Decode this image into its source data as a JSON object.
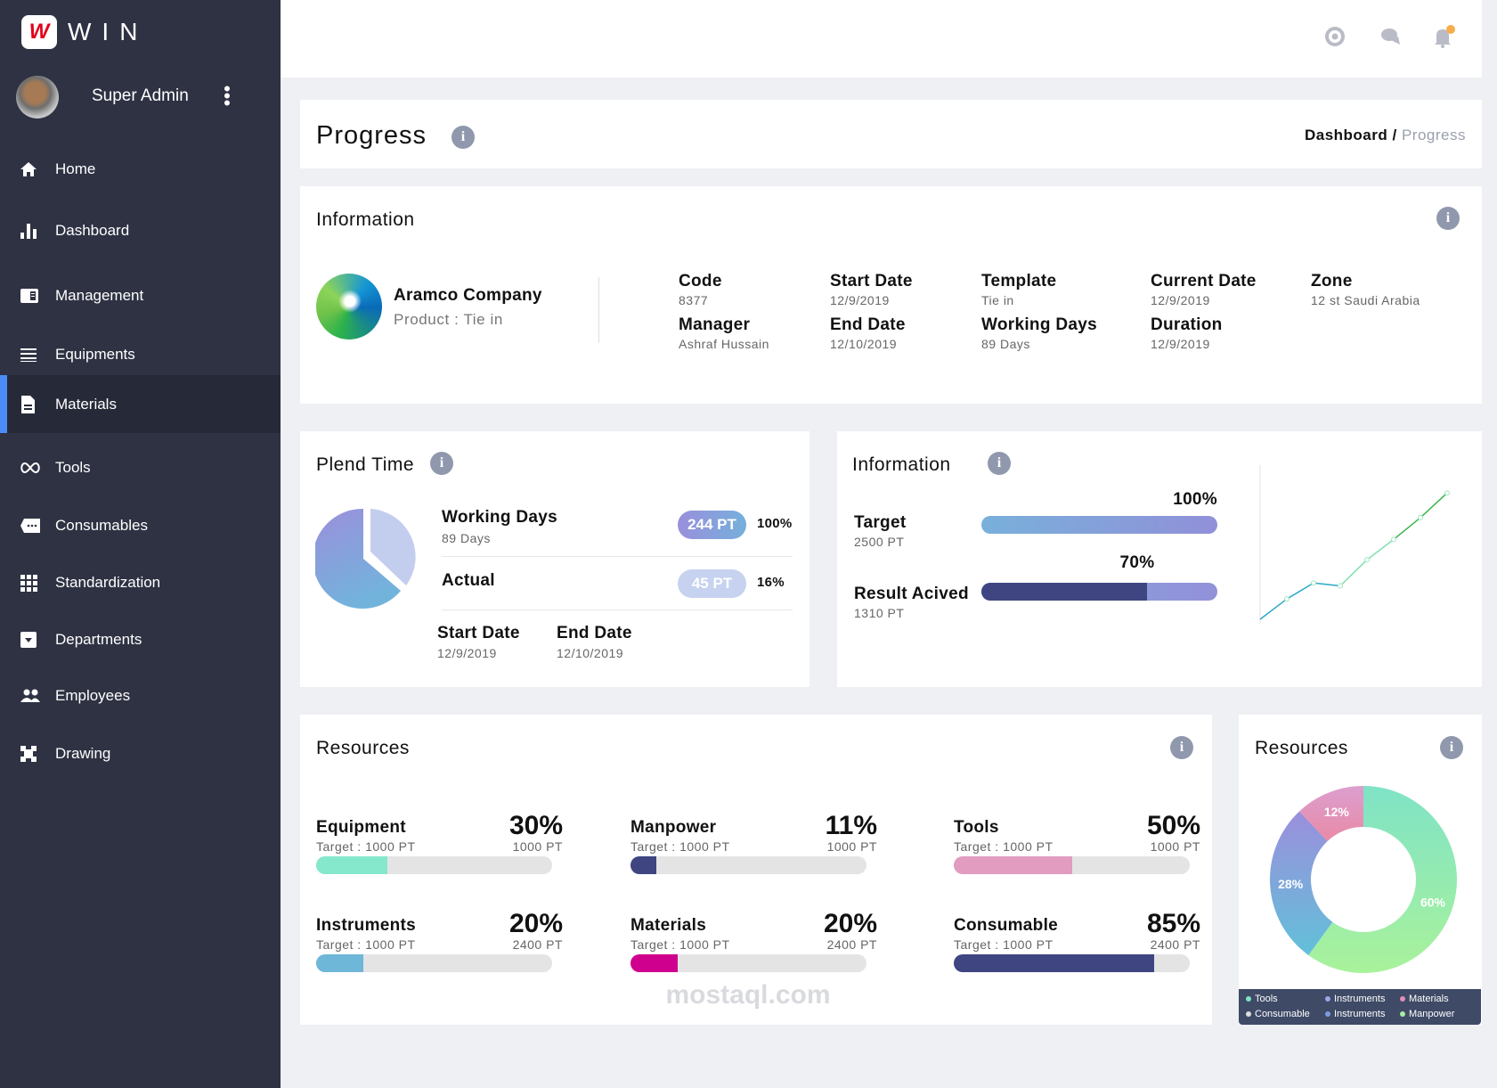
{
  "app": {
    "brand": "WIN",
    "logo_letter": "W",
    "user": "Super Admin"
  },
  "sidebar": {
    "items": [
      {
        "label": "Home",
        "icon": "home-icon"
      },
      {
        "label": "Dashboard",
        "icon": "bar-chart-icon"
      },
      {
        "label": "Management",
        "icon": "book-icon"
      },
      {
        "label": "Equipments",
        "icon": "equipment-icon"
      },
      {
        "label": "Materials",
        "icon": "document-icon",
        "active": true
      },
      {
        "label": "Tools",
        "icon": "infinity-icon"
      },
      {
        "label": "Consumables",
        "icon": "tag-icon"
      },
      {
        "label": "Standardization",
        "icon": "grid-icon"
      },
      {
        "label": "Departments",
        "icon": "archive-icon"
      },
      {
        "label": "Employees",
        "icon": "people-icon"
      },
      {
        "label": "Drawing",
        "icon": "drawing-icon"
      }
    ],
    "accent": "#4a8cf7"
  },
  "topbar": {
    "icons": [
      "support-icon",
      "chat-icon",
      "bell-icon"
    ],
    "notification_color": "#f6ad4b"
  },
  "header": {
    "title": "Progress",
    "breadcrumb": {
      "parent": "Dashboard",
      "separator": "/",
      "current": "Progress"
    }
  },
  "information": {
    "title": "Information",
    "company": "Aramco Company",
    "product": "Product : Tie in",
    "fields": [
      {
        "label": "Code",
        "value": "8377"
      },
      {
        "label": "Start Date",
        "value": "12/9/2019"
      },
      {
        "label": "Template",
        "value": "Tie in"
      },
      {
        "label": "Current Date",
        "value": "12/9/2019"
      },
      {
        "label": "Zone",
        "value": "12 st Saudi Arabia"
      },
      {
        "label": "Manager",
        "value": "Ashraf Hussain"
      },
      {
        "label": "End Date",
        "value": "12/10/2019"
      },
      {
        "label": "Working Days",
        "value": "89 Days"
      },
      {
        "label": "Duration",
        "value": "12/9/2019"
      }
    ]
  },
  "plend_time": {
    "title": "Plend Time",
    "working_days": {
      "label": "Working Days",
      "sub": "89 Days",
      "pill": "244 PT",
      "percent": "100%"
    },
    "actual": {
      "label": "Actual",
      "pill": "45 PT",
      "percent": "16%"
    },
    "start_date": {
      "label": "Start Date",
      "value": "12/9/2019"
    },
    "end_date": {
      "label": "End Date",
      "value": "12/10/2019"
    }
  },
  "information2": {
    "title": "Information",
    "target": {
      "label": "Target",
      "sub": "2500 PT",
      "percent_label": "100%",
      "percent": 100
    },
    "result": {
      "label": "Result Acived",
      "sub": "1310 PT",
      "percent_label": "70%",
      "percent": 70
    }
  },
  "chart_data": {
    "type": "line",
    "x": [
      0,
      1,
      2,
      3,
      4,
      5,
      6,
      7
    ],
    "values": [
      0,
      14,
      25,
      23,
      41,
      55,
      70,
      87
    ],
    "ylim": [
      0,
      100
    ],
    "grid": false,
    "colors": [
      "#2aa9c9",
      "#7fe0b0",
      "#3cb44b"
    ]
  },
  "resources": {
    "title": "Resources",
    "items": [
      {
        "name": "Equipment",
        "target": "Target : 1000 PT",
        "percent_label": "30%",
        "percent": 30,
        "sub": "1000 PT",
        "color": "#85e8cc"
      },
      {
        "name": "Manpower",
        "target": "Target : 1000 PT",
        "percent_label": "11%",
        "percent": 11,
        "sub": "1000 PT",
        "color": "#3e4581"
      },
      {
        "name": "Tools",
        "target": "Target : 1000 PT",
        "percent_label": "50%",
        "percent": 50,
        "sub": "1000 PT",
        "color": "#e19cbf"
      },
      {
        "name": "Instruments",
        "target": "Target : 1000 PT",
        "percent_label": "20%",
        "percent": 20,
        "sub": "2400 PT",
        "color": "#6eb7d9"
      },
      {
        "name": "Materials",
        "target": "Target : 1000 PT",
        "percent_label": "20%",
        "percent": 20,
        "sub": "2400 PT",
        "color": "#d0008f"
      },
      {
        "name": "Consumable",
        "target": "Target : 1000 PT",
        "percent_label": "85%",
        "percent": 85,
        "sub": "2400 PT",
        "color": "#3e4581"
      }
    ]
  },
  "resources_donut": {
    "title": "Resources",
    "slices": [
      {
        "label": "60%",
        "value": 60,
        "color": "#8de8c4"
      },
      {
        "label": "28%",
        "value": 28,
        "color": "#8a9ee0"
      },
      {
        "label": "12%",
        "value": 12,
        "color": "#e49fc2"
      }
    ],
    "legend": [
      {
        "label": "Tools",
        "color": "#7fe3c6"
      },
      {
        "label": "Instruments",
        "color": "#9aa6e8"
      },
      {
        "label": "Materials",
        "color": "#e18fb5"
      },
      {
        "label": "Consumable",
        "color": "#dddddd"
      },
      {
        "label": "Instruments",
        "color": "#7b9ee0"
      },
      {
        "label": "Manpower",
        "color": "#a7ef9f"
      }
    ]
  },
  "watermark": "mostaql.com"
}
